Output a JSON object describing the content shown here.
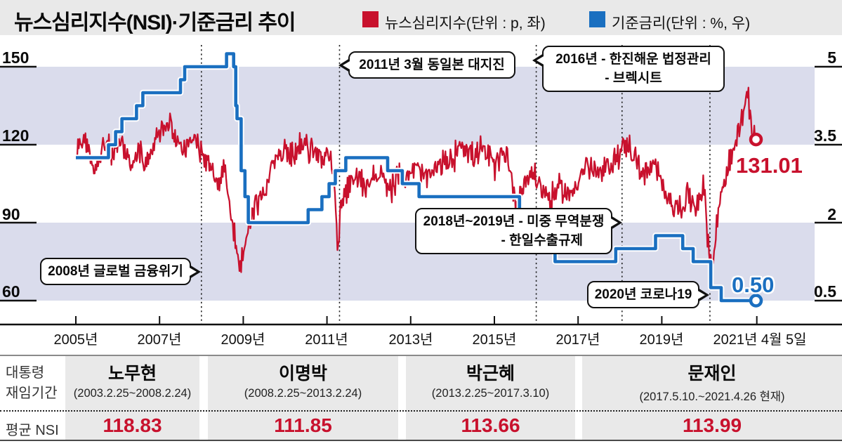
{
  "header": {
    "legend": [
      {
        "label": "뉴스심리지수(단위 : p, 좌)",
        "color": "#c8112d"
      },
      {
        "label": "기준금리(단위 : %, 우)",
        "color": "#1a6fc0"
      }
    ]
  },
  "chart_data": {
    "type": "line",
    "title": "뉴스심리지수(NSI)·기준금리 추이",
    "colors": {
      "nsi": "#c8112d",
      "rate": "#1a6fc0",
      "band": "#dadcec"
    },
    "left_axis": {
      "name": "뉴스심리지수 (p)",
      "values": [
        150,
        120,
        90,
        60
      ],
      "labels": [
        "150",
        "120",
        "90",
        "60"
      ],
      "range": [
        50,
        158
      ]
    },
    "right_axis": {
      "name": "기준금리 (%)",
      "values": [
        5,
        3.5,
        2,
        0.5
      ],
      "labels": [
        "5",
        "3.5",
        "2",
        "0.5"
      ]
    },
    "bands": [
      [
        150,
        120
      ],
      [
        90,
        60
      ]
    ],
    "x_axis": {
      "ticks": [
        2005,
        2007,
        2009,
        2011,
        2013,
        2015,
        2017,
        2019,
        2021.27
      ],
      "labels": [
        "2005년",
        "2007년",
        "2009년",
        "2011년",
        "2013년",
        "2015년",
        "2017년",
        "2019년",
        "2021년 4월 5일"
      ]
    },
    "events": [
      {
        "t": 2008.0,
        "line1": "2008년 글로벌 금융위기"
      },
      {
        "t": 2011.3,
        "line1": "2011년 3월 동일본 대지진"
      },
      {
        "t": 2016.0,
        "line1": "2016년 - 한진해운 법정관리",
        "line2": "- 브렉시트"
      },
      {
        "t": 2018.05,
        "line1": "2018년~2019년 - 미중 무역분쟁",
        "line2": "- 한일수출규제"
      },
      {
        "t": 2020.15,
        "line1": "2020년 코로나19"
      }
    ],
    "series": [
      {
        "name": "뉴스심리지수",
        "unit": "p",
        "axis": "left",
        "style": "noisy-line",
        "end_label": "131.01",
        "end_value": 131.01,
        "anchors": [
          [
            2005.0,
            117
          ],
          [
            2005.2,
            124
          ],
          [
            2005.45,
            112
          ],
          [
            2005.7,
            120
          ],
          [
            2005.9,
            116
          ],
          [
            2006.1,
            122
          ],
          [
            2006.3,
            113
          ],
          [
            2006.5,
            119
          ],
          [
            2006.7,
            111
          ],
          [
            2006.9,
            121
          ],
          [
            2007.1,
            127
          ],
          [
            2007.25,
            131
          ],
          [
            2007.4,
            122
          ],
          [
            2007.6,
            118
          ],
          [
            2007.8,
            123
          ],
          [
            2008.0,
            116
          ],
          [
            2008.2,
            111
          ],
          [
            2008.4,
            105
          ],
          [
            2008.55,
            112
          ],
          [
            2008.7,
            95
          ],
          [
            2008.85,
            78
          ],
          [
            2008.95,
            73
          ],
          [
            2009.1,
            88
          ],
          [
            2009.3,
            97
          ],
          [
            2009.5,
            102
          ],
          [
            2009.7,
            112
          ],
          [
            2009.9,
            116
          ],
          [
            2010.2,
            118
          ],
          [
            2010.5,
            120
          ],
          [
            2010.8,
            116
          ],
          [
            2011.0,
            117
          ],
          [
            2011.15,
            110
          ],
          [
            2011.25,
            82
          ],
          [
            2011.35,
            95
          ],
          [
            2011.5,
            103
          ],
          [
            2011.7,
            108
          ],
          [
            2011.9,
            104
          ],
          [
            2012.2,
            109
          ],
          [
            2012.5,
            103
          ],
          [
            2012.8,
            108
          ],
          [
            2013.1,
            111
          ],
          [
            2013.4,
            107
          ],
          [
            2013.7,
            112
          ],
          [
            2014.0,
            114
          ],
          [
            2014.2,
            122
          ],
          [
            2014.5,
            115
          ],
          [
            2014.7,
            118
          ],
          [
            2015.0,
            112
          ],
          [
            2015.3,
            118
          ],
          [
            2015.5,
            97
          ],
          [
            2015.7,
            105
          ],
          [
            2015.9,
            110
          ],
          [
            2016.1,
            104
          ],
          [
            2016.35,
            99
          ],
          [
            2016.6,
            104
          ],
          [
            2016.8,
            100
          ],
          [
            2017.0,
            107
          ],
          [
            2017.2,
            112
          ],
          [
            2017.5,
            108
          ],
          [
            2017.8,
            113
          ],
          [
            2018.0,
            117
          ],
          [
            2018.2,
            121
          ],
          [
            2018.4,
            113
          ],
          [
            2018.6,
            108
          ],
          [
            2018.8,
            112
          ],
          [
            2019.0,
            105
          ],
          [
            2019.2,
            99
          ],
          [
            2019.4,
            95
          ],
          [
            2019.6,
            100
          ],
          [
            2019.8,
            97
          ],
          [
            2020.0,
            104
          ],
          [
            2020.1,
            85
          ],
          [
            2020.2,
            70
          ],
          [
            2020.35,
            95
          ],
          [
            2020.5,
            108
          ],
          [
            2020.7,
            116
          ],
          [
            2020.95,
            133
          ],
          [
            2021.05,
            138
          ],
          [
            2021.15,
            126
          ],
          [
            2021.25,
            122
          ]
        ],
        "noise_amp": 4.2
      },
      {
        "name": "기준금리",
        "unit": "%",
        "axis": "right",
        "style": "step-line",
        "end_label": "0.50",
        "end_value": 0.5,
        "steps": [
          [
            2005.0,
            3.25
          ],
          [
            2005.78,
            3.5
          ],
          [
            2005.95,
            3.75
          ],
          [
            2006.1,
            4.0
          ],
          [
            2006.45,
            4.25
          ],
          [
            2006.6,
            4.5
          ],
          [
            2007.5,
            4.75
          ],
          [
            2007.6,
            5.0
          ],
          [
            2008.6,
            5.25
          ],
          [
            2008.77,
            5.0
          ],
          [
            2008.82,
            4.25
          ],
          [
            2008.85,
            4.0
          ],
          [
            2008.95,
            3.0
          ],
          [
            2009.04,
            2.5
          ],
          [
            2009.12,
            2.0
          ],
          [
            2010.55,
            2.25
          ],
          [
            2010.88,
            2.5
          ],
          [
            2011.05,
            2.75
          ],
          [
            2011.2,
            3.0
          ],
          [
            2011.45,
            3.25
          ],
          [
            2012.45,
            3.0
          ],
          [
            2012.8,
            2.75
          ],
          [
            2013.2,
            2.5
          ],
          [
            2015.6,
            2.25
          ],
          [
            2015.75,
            2.0
          ],
          [
            2015.95,
            1.75
          ],
          [
            2016.2,
            1.5
          ],
          [
            2016.45,
            1.25
          ],
          [
            2017.9,
            1.5
          ],
          [
            2018.85,
            1.75
          ],
          [
            2019.5,
            1.5
          ],
          [
            2019.75,
            1.25
          ],
          [
            2020.17,
            0.75
          ],
          [
            2020.42,
            0.5
          ]
        ],
        "end_t": 2021.25
      }
    ]
  },
  "table": {
    "row_headers": {
      "tenure_line1": "대통령",
      "tenure_line2": "재임기간",
      "avg": "평균 NSI"
    },
    "presidents": [
      {
        "name": "노무현",
        "term": "(2003.2.25~2008.2.24)",
        "avg_nsi": "118.83"
      },
      {
        "name": "이명박",
        "term": "(2008.2.25~2013.2.24)",
        "avg_nsi": "111.85"
      },
      {
        "name": "박근혜",
        "term": "(2013.2.25~2017.3.10)",
        "avg_nsi": "113.66"
      },
      {
        "name": "문재인",
        "term": "(2017.5.10.~2021.4.26 현재)",
        "avg_nsi": "113.99"
      }
    ]
  }
}
